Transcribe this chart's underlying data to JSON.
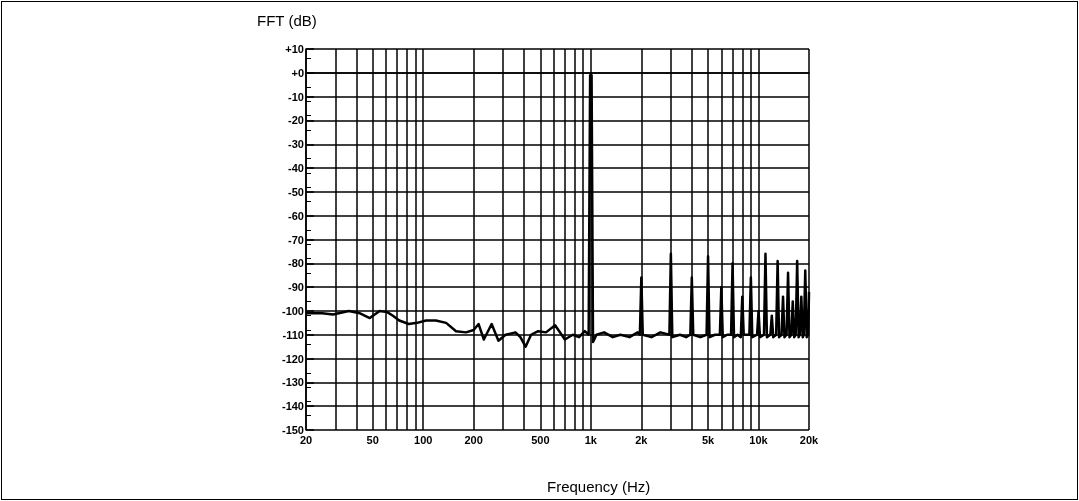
{
  "chart_data": {
    "type": "line",
    "ylabel": "FFT (dB)",
    "xlabel": "Frequency (Hz)",
    "log": "x",
    "grid": true,
    "marker": "none",
    "line_style": "solid",
    "xlim": [
      20,
      20000
    ],
    "xticks": [
      20,
      {
        "value": 30,
        "label": null
      },
      {
        "value": 40,
        "label": null
      },
      50,
      {
        "value": 60,
        "label": null
      },
      {
        "value": 70,
        "label": null
      },
      {
        "value": 80,
        "label": null
      },
      {
        "value": 90,
        "label": null
      },
      100,
      200,
      {
        "value": 300,
        "label": null
      },
      {
        "value": 400,
        "label": null
      },
      500,
      {
        "value": 600,
        "label": null
      },
      {
        "value": 700,
        "label": null
      },
      {
        "value": 800,
        "label": null
      },
      {
        "value": 900,
        "label": null
      },
      {
        "value": 1000,
        "label": "1k"
      },
      {
        "value": 2000,
        "label": "2k"
      },
      {
        "value": 3000,
        "label": null
      },
      {
        "value": 4000,
        "label": null
      },
      {
        "value": 5000,
        "label": "5k"
      },
      {
        "value": 6000,
        "label": null
      },
      {
        "value": 7000,
        "label": null
      },
      {
        "value": 8000,
        "label": null
      },
      {
        "value": 9000,
        "label": null
      },
      {
        "value": 10000,
        "label": "10k"
      },
      {
        "value": 20000,
        "label": "20k"
      }
    ],
    "ylim": [
      -150,
      10
    ],
    "yticks": [
      -150,
      -140,
      -130,
      -120,
      -110,
      -100,
      -90,
      -80,
      -70,
      -60,
      -50,
      -40,
      -30,
      -20,
      -10,
      {
        "value": 0,
        "label": "+0"
      },
      {
        "value": 10,
        "label": "+10"
      }
    ],
    "series": [
      {
        "color": "#000000",
        "x": [
          20,
          25,
          29,
          36,
          42,
          48,
          55,
          61,
          66,
          72,
          82,
          92,
          104,
          119,
          137,
          157,
          180,
          200,
          214,
          230,
          256,
          281,
          310,
          355,
          380,
          408,
          440,
          485,
          540,
          612,
          700,
          780,
          850,
          920,
          970,
          990,
          1010,
          1030,
          1080,
          1200,
          1350,
          1500,
          1700,
          1900,
          1960,
          2000,
          2040,
          2300,
          2600,
          2940,
          3000,
          3060,
          3400,
          3700,
          3920,
          4000,
          4080,
          4500,
          4900,
          5000,
          5100,
          5500,
          5880,
          6000,
          6120,
          6500,
          6860,
          7000,
          7140,
          7500,
          7840,
          8000,
          8160,
          8820,
          9000,
          9180,
          9800,
          10000,
          10200,
          10780,
          11000,
          11220,
          11760,
          12000,
          12240,
          12740,
          13000,
          13260,
          13720,
          14000,
          14280,
          14700,
          15000,
          15300,
          15700,
          16000,
          16320,
          16660,
          17000,
          17340,
          17640,
          18000,
          18360,
          18620,
          19000,
          19380,
          19800,
          20000
        ],
        "values": [
          -101,
          -101,
          -101.5,
          -100,
          -101,
          -103,
          -100,
          -100.5,
          -102,
          -104,
          -105.5,
          -105,
          -104,
          -104,
          -105,
          -108.5,
          -109,
          -108,
          -105.5,
          -112,
          -105.5,
          -112.5,
          -110,
          -109,
          -111,
          -115,
          -110,
          -108.5,
          -109,
          -106,
          -112,
          -110,
          -111,
          -108.5,
          -110,
          -1,
          -1,
          -113,
          -110,
          -109,
          -111,
          -110,
          -111,
          -109,
          -110,
          -86,
          -110,
          -111,
          -109,
          -110,
          -76,
          -111,
          -110,
          -111,
          -110,
          -86,
          -110,
          -111,
          -110,
          -77,
          -111,
          -110,
          -110,
          -90,
          -111,
          -110,
          -110,
          -80,
          -111,
          -110,
          -111,
          -94,
          -110,
          -110,
          -86,
          -111,
          -110,
          -100,
          -111,
          -110,
          -76,
          -111,
          -110,
          -102,
          -111,
          -110,
          -79,
          -111,
          -110,
          -94,
          -111,
          -110,
          -84,
          -111,
          -110,
          -96,
          -111,
          -110,
          -79,
          -111,
          -110,
          -94,
          -111,
          -110,
          -83,
          -111,
          -110,
          -92
        ]
      }
    ]
  }
}
